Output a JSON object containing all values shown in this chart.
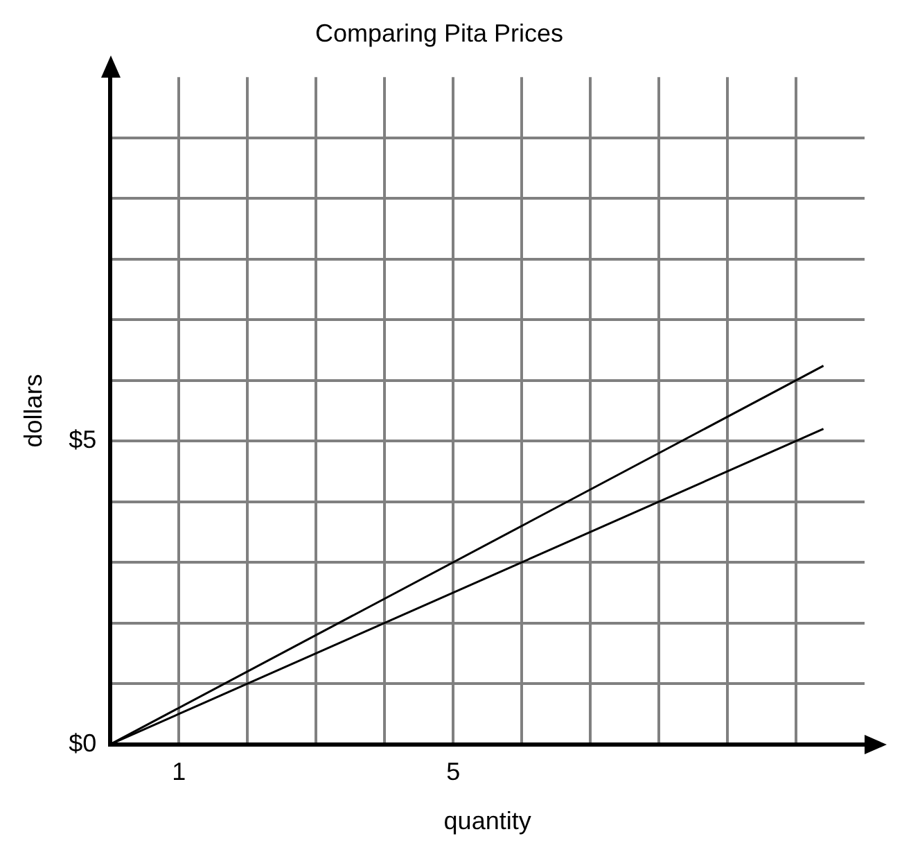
{
  "chart_data": {
    "type": "line",
    "title": "Comparing Pita Prices",
    "xlabel": "quantity",
    "ylabel": "dollars",
    "x": [
      0,
      10.4
    ],
    "series": [
      {
        "color": "#000000",
        "values": [
          0,
          6.24
        ]
      },
      {
        "color": "#000000",
        "values": [
          0,
          5.2
        ]
      }
    ],
    "xlim": [
      0,
      11
    ],
    "ylim": [
      0,
      11
    ],
    "xticks": [
      {
        "value": 1,
        "label": "1"
      },
      {
        "value": 2,
        "label": null
      },
      {
        "value": 3,
        "label": null
      },
      {
        "value": 4,
        "label": null
      },
      {
        "value": 5,
        "label": "5"
      },
      {
        "value": 6,
        "label": null
      },
      {
        "value": 7,
        "label": null
      },
      {
        "value": 8,
        "label": null
      },
      {
        "value": 9,
        "label": null
      },
      {
        "value": 10,
        "label": null
      }
    ],
    "yticks": [
      {
        "value": 0,
        "label": "$0"
      },
      {
        "value": 1,
        "label": null
      },
      {
        "value": 2,
        "label": null
      },
      {
        "value": 3,
        "label": null
      },
      {
        "value": 4,
        "label": null
      },
      {
        "value": 5,
        "label": "$5"
      },
      {
        "value": 6,
        "label": null
      },
      {
        "value": 7,
        "label": null
      },
      {
        "value": 8,
        "label": null
      },
      {
        "value": 9,
        "label": null
      },
      {
        "value": 10,
        "label": null
      }
    ],
    "grid": true,
    "legend": false,
    "marker": "none",
    "line_style": "solid"
  }
}
